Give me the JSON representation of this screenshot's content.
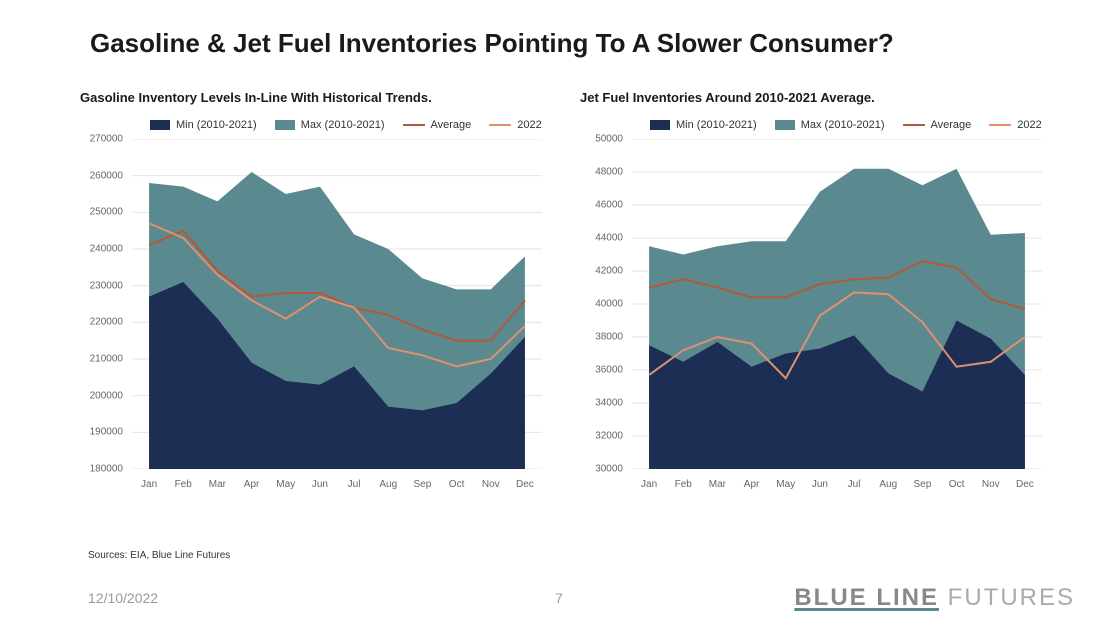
{
  "title": "Gasoline & Jet Fuel Inventories Pointing To A Slower Consumer?",
  "sources": "Sources: EIA, Blue Line Futures",
  "footer": {
    "date": "12/10/2022",
    "page": "7",
    "logo_blue": "BLUE LINE",
    "logo_futures": " FUTURES"
  },
  "legend": {
    "min": "Min (2010-2021)",
    "max": "Max (2010-2021)",
    "avg": "Average",
    "yr": "2022"
  },
  "colors": {
    "min_fill": "#1c2e54",
    "max_fill": "#5a8a8f",
    "avg_line": "#b35838",
    "yr_line": "#e09070",
    "grid": "#e5e5e5",
    "bg": "#ffffff"
  },
  "months": [
    "Jan",
    "Feb",
    "Mar",
    "Apr",
    "May",
    "Jun",
    "Jul",
    "Aug",
    "Sep",
    "Oct",
    "Nov",
    "Dec"
  ],
  "gasoline": {
    "title": "Gasoline Inventory Levels In-Line With Historical Trends.",
    "ylim": [
      180000,
      270000
    ],
    "ytick_step": 10000,
    "min": [
      227000,
      231000,
      221000,
      209000,
      204000,
      203000,
      208000,
      197000,
      196000,
      198000,
      206000,
      216000
    ],
    "max": [
      258000,
      257000,
      253000,
      261000,
      255000,
      257000,
      244000,
      240000,
      232000,
      229000,
      229000,
      238000
    ],
    "avg": [
      241000,
      245000,
      234000,
      227000,
      228000,
      228000,
      224000,
      222000,
      218000,
      215000,
      215000,
      226000
    ],
    "yr": [
      247000,
      243000,
      233000,
      226000,
      221000,
      227000,
      224000,
      213000,
      211000,
      208000,
      210000,
      219000
    ]
  },
  "jetfuel": {
    "title": "Jet Fuel Inventories Around 2010-2021 Average.",
    "ylim": [
      30000,
      50000
    ],
    "ytick_step": 2000,
    "min": [
      37500,
      36500,
      37700,
      36200,
      37000,
      37300,
      38100,
      35800,
      34700,
      39000,
      37900,
      35700
    ],
    "max": [
      43500,
      43000,
      43500,
      43800,
      43800,
      46800,
      48200,
      48200,
      47200,
      48200,
      44200,
      44300
    ],
    "avg": [
      41000,
      41500,
      41000,
      40400,
      40400,
      41200,
      41500,
      41600,
      42600,
      42200,
      40300,
      39700
    ],
    "yr": [
      35700,
      37200,
      38000,
      37600,
      35500,
      39300,
      40700,
      40600,
      38900,
      36200,
      36500,
      38000
    ]
  }
}
